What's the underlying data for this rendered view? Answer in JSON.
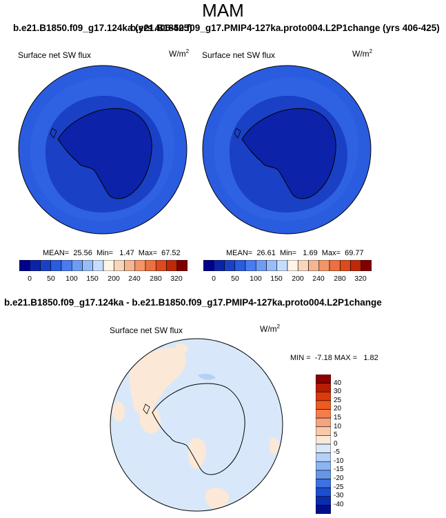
{
  "season": "MAM",
  "panels": [
    {
      "run_title": "b.e21.B1850.f09_g17.124ka (yrs 406-425)",
      "variable": "Surface net SW flux",
      "units_base": "W/m",
      "units_exp": "2",
      "stats": "MEAN=  25.56  Min=   1.47  Max=  67.52"
    },
    {
      "run_title": "b.e21.B1850.f09_g17.PMIP4-127ka.proto004.L2P1change (yrs 406-425)",
      "variable": "Surface net SW flux",
      "units_base": "W/m",
      "units_exp": "2",
      "stats": "MEAN=  26.61  Min=   1.69  Max=  69.77"
    }
  ],
  "diff_panel": {
    "title": "b.e21.B1850.f09_g17.124ka - b.e21.B1850.f09_g17.PMIP4-127ka.proto004.L2P1change",
    "variable": "Surface net SW flux",
    "units_base": "W/m",
    "units_exp": "2",
    "stats": "MIN =  -7.18 MAX =   1.82"
  },
  "abs_colorbar": {
    "colors": [
      "#00008c",
      "#0c22a8",
      "#1a40c6",
      "#2a5ce0",
      "#4a7cf0",
      "#6e9cf4",
      "#98bcf8",
      "#c6dcfc",
      "#fdf5e8",
      "#f8d6bc",
      "#f6b592",
      "#f29468",
      "#ec7040",
      "#dc4a1e",
      "#c02808",
      "#800000"
    ],
    "ticks": [
      "0",
      "50",
      "100",
      "150",
      "200",
      "240",
      "280",
      "320"
    ]
  },
  "diff_colorbar": {
    "colors_top_to_bottom": [
      "#8c0000",
      "#b81c04",
      "#dc3a0a",
      "#f05a1e",
      "#f47e4a",
      "#f6a47e",
      "#f8c8aa",
      "#fbe8d6",
      "#d8e8fa",
      "#b4d0f6",
      "#8cb4f2",
      "#6496ea",
      "#3c72e2",
      "#1c4ed0",
      "#0a2cb0",
      "#00108c"
    ],
    "ticks": [
      "40",
      "30",
      "25",
      "20",
      "15",
      "10",
      "5",
      "0",
      "-5",
      "-10",
      "-15",
      "-20",
      "-25",
      "-30",
      "-40"
    ]
  }
}
